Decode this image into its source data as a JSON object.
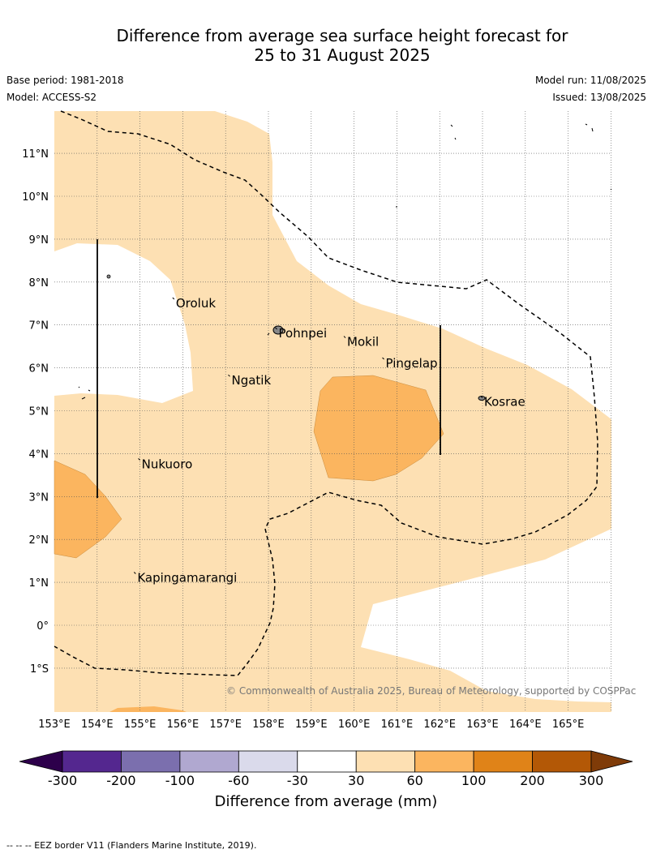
{
  "title_line1": "Difference from average sea surface height forecast for",
  "title_line2": "25 to 31 August 2025",
  "base_period": "Base period: 1981-2018",
  "model": "Model: ACCESS-S2",
  "model_run": "Model run: 11/08/2025",
  "issued": "Issued: 13/08/2025",
  "copyright": "© Commonwealth of Australia 2025, Bureau of Meteorology, supported by COSPPac",
  "footnote": "--  --  -- EEZ border V11 (Flanders Marine Institute, 2019).",
  "colorbar": {
    "title": "Difference from average (mm)",
    "ticks": [
      "-300",
      "-200",
      "-100",
      "-60",
      "-30",
      "30",
      "60",
      "100",
      "200",
      "300"
    ],
    "colors": [
      "#54278f",
      "#7b6fae",
      "#b0a8d0",
      "#dadaeb",
      "#ffffff",
      "#fde0b3",
      "#fbb55f",
      "#e08318",
      "#b35806"
    ],
    "under_color": "#2d004b",
    "over_color": "#7f3b08"
  },
  "map": {
    "lon_labels": [
      "153°E",
      "154°E",
      "155°E",
      "156°E",
      "157°E",
      "158°E",
      "159°E",
      "160°E",
      "161°E",
      "162°E",
      "163°E",
      "164°E",
      "165°E"
    ],
    "lat_labels": [
      "11°N",
      "10°N",
      "9°N",
      "8°N",
      "7°N",
      "6°N",
      "5°N",
      "4°N",
      "3°N",
      "2°N",
      "1°N",
      "0°",
      "1°S"
    ],
    "places": [
      {
        "name": "Oroluk",
        "lon": 155.8,
        "lat": 7.6
      },
      {
        "name": "Pohnpei",
        "lon": 158.2,
        "lat": 6.9
      },
      {
        "name": "Mokil",
        "lon": 159.8,
        "lat": 6.7
      },
      {
        "name": "Pingelap",
        "lon": 160.7,
        "lat": 6.2
      },
      {
        "name": "Ngatik",
        "lon": 157.1,
        "lat": 5.8
      },
      {
        "name": "Kosrae",
        "lon": 163.0,
        "lat": 5.3
      },
      {
        "name": "Nukuoro",
        "lon": 155.0,
        "lat": 3.85
      },
      {
        "name": "Kapingamarangi",
        "lon": 154.9,
        "lat": 1.2
      }
    ]
  }
}
